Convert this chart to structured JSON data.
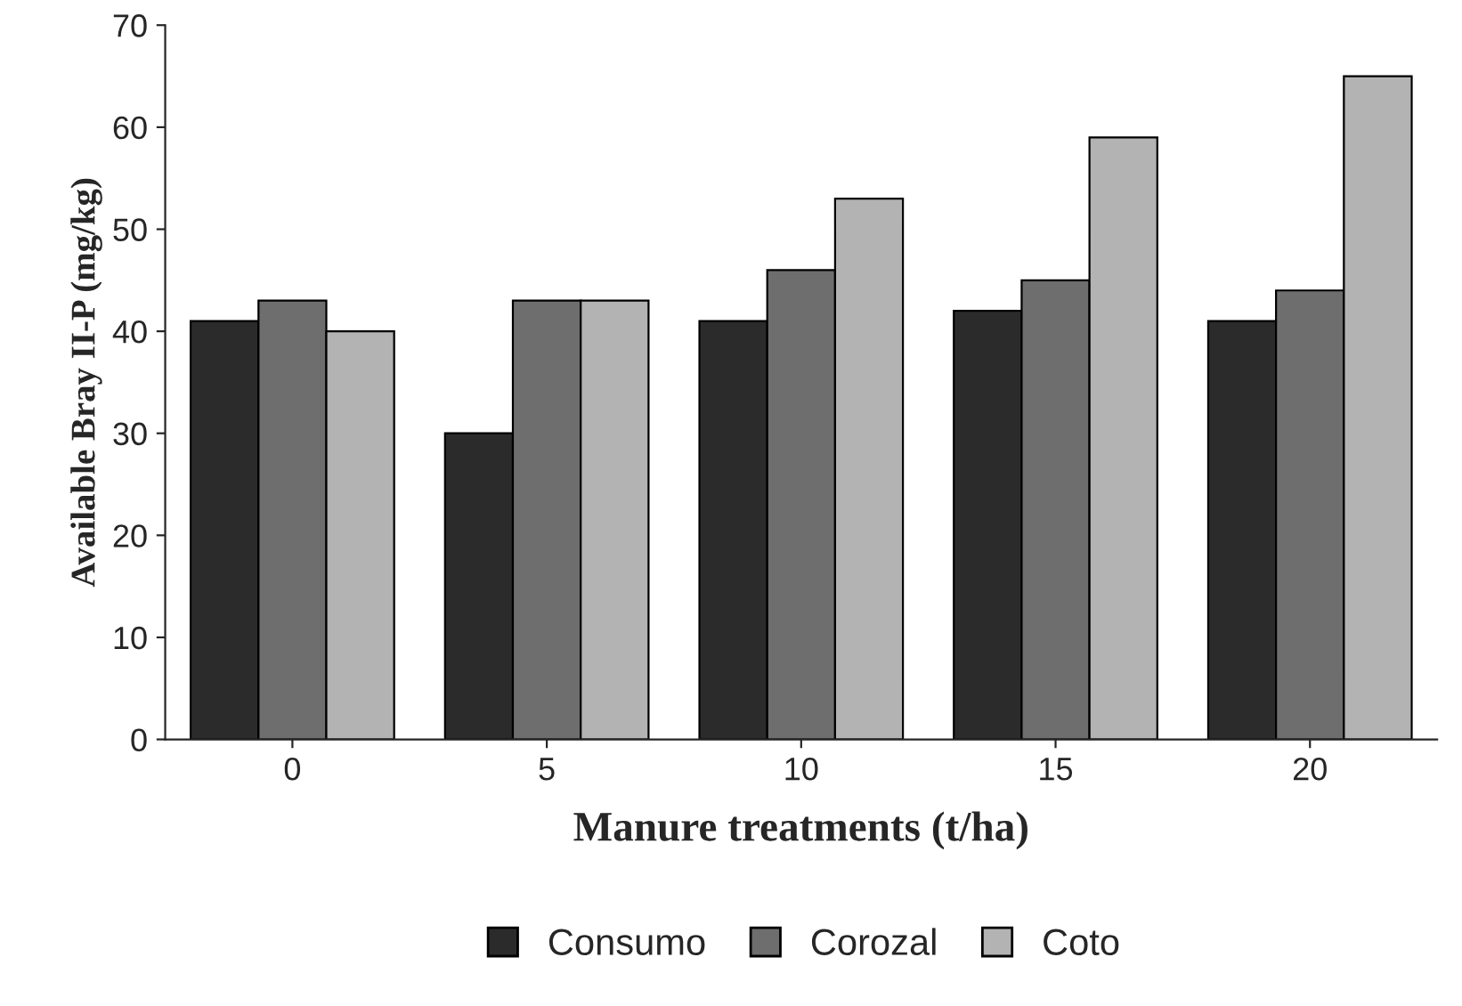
{
  "chart_data": {
    "type": "bar",
    "xlabel": "Manure treatments (t/ha)",
    "ylabel": "Available Bray II-P (mg/kg)",
    "categories": [
      "0",
      "5",
      "10",
      "15",
      "20"
    ],
    "series": [
      {
        "name": "Consumo",
        "color": "#2b2b2b",
        "values": [
          41,
          30,
          41,
          42,
          41
        ]
      },
      {
        "name": "Corozal",
        "color": "#6e6e6e",
        "values": [
          43,
          43,
          46,
          45,
          44
        ]
      },
      {
        "name": "Coto",
        "color": "#b3b3b3",
        "values": [
          40,
          43,
          53,
          59,
          65
        ]
      }
    ],
    "ylim": [
      0,
      70
    ],
    "yticks": [
      0,
      10,
      20,
      30,
      40,
      50,
      60,
      70
    ],
    "grid": false,
    "legend": "bottom"
  }
}
